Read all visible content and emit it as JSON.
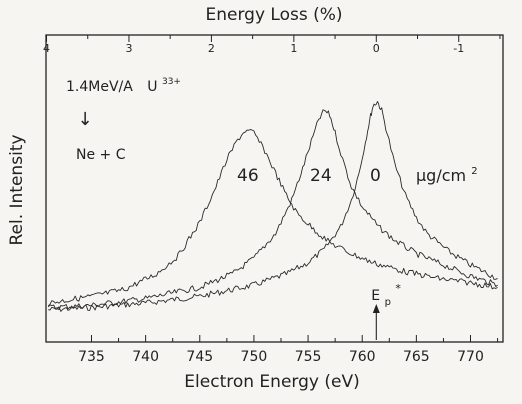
{
  "chart_data": {
    "type": "line",
    "title": "",
    "xlabel": "Electron Energy (eV)",
    "ylabel": "Rel. Intensity",
    "x2label": "Energy Loss (%)",
    "xlim": [
      730.8,
      773
    ],
    "ylim": [
      0,
      1
    ],
    "x_ticks": [
      735,
      740,
      745,
      750,
      755,
      760,
      765,
      770
    ],
    "x2_ticks": [
      "4",
      "3",
      "2",
      "1",
      "0",
      "-1"
    ],
    "x2_tick_values": [
      4,
      3,
      2,
      1,
      0,
      -1
    ],
    "x2_reference_energy_ev": 761.3,
    "grid": false,
    "series": [
      {
        "peak_label": "0",
        "x": [
          731,
          735,
          740,
          745,
          750,
          753,
          755,
          756.5,
          758,
          759,
          759.7,
          760.3,
          760.7,
          761.0,
          761.4,
          761.8,
          762.3,
          763,
          764,
          765,
          766,
          768,
          770,
          772.5
        ],
        "y": [
          0.01,
          0.02,
          0.04,
          0.07,
          0.12,
          0.17,
          0.22,
          0.28,
          0.38,
          0.5,
          0.62,
          0.76,
          0.86,
          0.92,
          0.94,
          0.9,
          0.8,
          0.66,
          0.52,
          0.42,
          0.35,
          0.27,
          0.21,
          0.15
        ]
      },
      {
        "peak_label": "24",
        "x": [
          731,
          735,
          740,
          745,
          748,
          750,
          752,
          753.5,
          754.5,
          755.3,
          756,
          756.5,
          757,
          757.5,
          758.2,
          759,
          760,
          761.5,
          763,
          765,
          768,
          770,
          772.5
        ],
        "y": [
          0.02,
          0.03,
          0.06,
          0.11,
          0.17,
          0.24,
          0.35,
          0.5,
          0.64,
          0.76,
          0.86,
          0.9,
          0.88,
          0.8,
          0.68,
          0.56,
          0.47,
          0.38,
          0.32,
          0.26,
          0.2,
          0.16,
          0.12
        ]
      },
      {
        "peak_label": "46",
        "x": [
          731,
          735,
          738,
          741,
          743,
          745,
          746.5,
          747.5,
          748.5,
          749.2,
          750,
          751,
          752,
          753,
          754,
          755.5,
          757,
          759,
          761,
          764,
          767,
          770,
          772.5
        ],
        "y": [
          0.04,
          0.07,
          0.1,
          0.17,
          0.25,
          0.4,
          0.56,
          0.68,
          0.77,
          0.81,
          0.8,
          0.72,
          0.62,
          0.52,
          0.44,
          0.37,
          0.31,
          0.26,
          0.22,
          0.18,
          0.15,
          0.13,
          0.11
        ]
      }
    ],
    "annotations": {
      "beam": "1.4MeV/A",
      "ion": "U",
      "ion_charge": "33+",
      "arrow_glyph": "↓",
      "target": "Ne + C",
      "peak_46": "46",
      "peak_24": "24",
      "peak_0": "0",
      "unit": "μg/cm",
      "unit_power": "2",
      "ep_letter": "E",
      "ep_sub": "p",
      "ep_sup": "*",
      "ep_energy": 761.3
    }
  }
}
